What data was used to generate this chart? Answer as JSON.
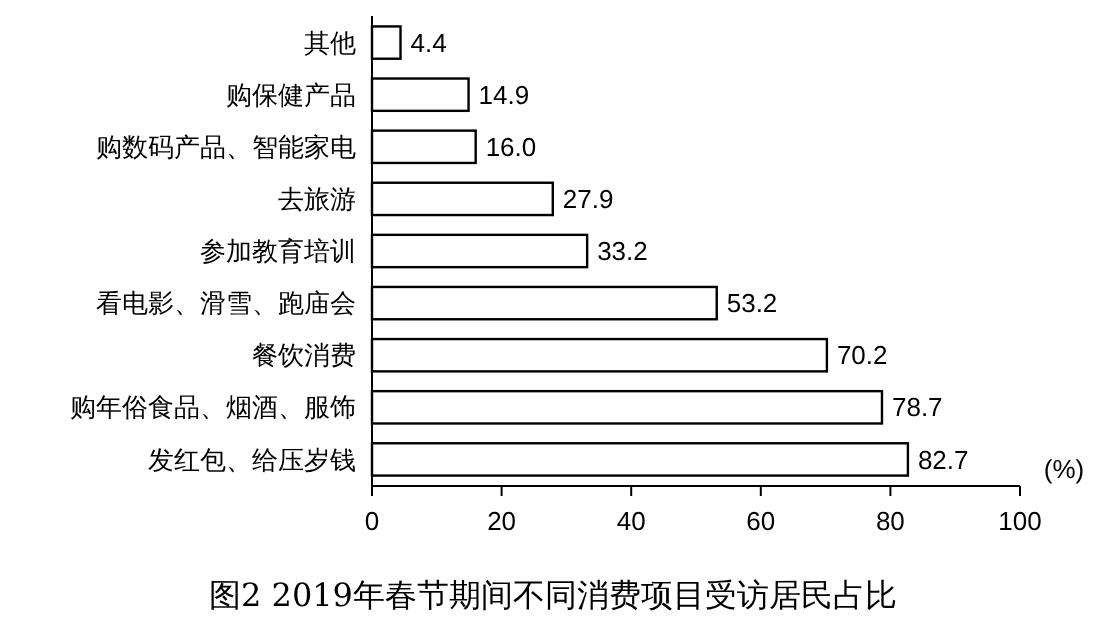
{
  "chart_data": {
    "type": "bar",
    "orientation": "horizontal",
    "title": "图2  2019年春节期间不同消费项目受访居民占比",
    "xlabel": "(%)",
    "categories": [
      "其他",
      "购保健产品",
      "购数码产品、智能家电",
      "去旅游",
      "参加教育培训",
      "看电影、滑雪、跑庙会",
      "餐饮消费",
      "购年俗食品、烟酒、服饰",
      "发红包、给压岁钱"
    ],
    "values": [
      4.4,
      14.9,
      16.0,
      27.9,
      33.2,
      53.2,
      70.2,
      78.7,
      82.7
    ],
    "value_labels": [
      "4.4",
      "14.9",
      "16.0",
      "27.9",
      "33.2",
      "53.2",
      "70.2",
      "78.7",
      "82.7"
    ],
    "color": "#ffffff",
    "xlim": [
      0,
      100
    ],
    "xticks": [
      0,
      20,
      40,
      60,
      80,
      100
    ],
    "grid": false
  }
}
